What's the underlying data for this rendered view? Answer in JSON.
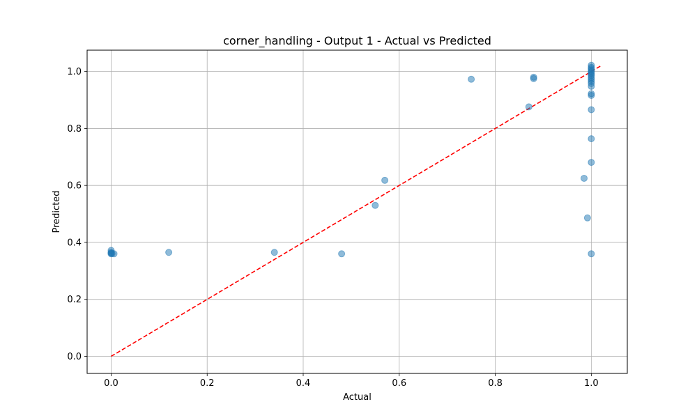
{
  "chart_data": {
    "type": "scatter",
    "title": "corner_handling - Output 1 - Actual vs Predicted",
    "xlabel": "Actual",
    "ylabel": "Predicted",
    "xlim": [
      -0.05,
      1.075
    ],
    "ylim": [
      -0.06,
      1.075
    ],
    "xticks": [
      0.0,
      0.2,
      0.4,
      0.6,
      0.8,
      1.0
    ],
    "yticks": [
      0.0,
      0.2,
      0.4,
      0.6,
      0.8,
      1.0
    ],
    "xtick_labels": [
      "0.0",
      "0.2",
      "0.4",
      "0.6",
      "0.8",
      "1.0"
    ],
    "ytick_labels": [
      "0.0",
      "0.2",
      "0.4",
      "0.6",
      "0.8",
      "1.0"
    ],
    "grid": true,
    "point_color": "#1f77b4",
    "point_alpha": 0.5,
    "reference_line": {
      "style": "dashed",
      "color": "#ff0000",
      "x": [
        0.0,
        1.02
      ],
      "y": [
        0.0,
        1.02
      ]
    },
    "series": [
      {
        "name": "points",
        "points": [
          [
            0.0,
            0.372
          ],
          [
            0.0,
            0.365
          ],
          [
            0.0,
            0.362
          ],
          [
            0.0,
            0.36
          ],
          [
            0.002,
            0.361
          ],
          [
            0.006,
            0.36
          ],
          [
            0.12,
            0.365
          ],
          [
            0.34,
            0.365
          ],
          [
            0.48,
            0.36
          ],
          [
            0.55,
            0.53
          ],
          [
            0.57,
            0.618
          ],
          [
            0.75,
            0.973
          ],
          [
            0.87,
            0.876
          ],
          [
            0.88,
            0.98
          ],
          [
            0.88,
            0.975
          ],
          [
            0.985,
            0.625
          ],
          [
            0.992,
            0.486
          ],
          [
            1.0,
            1.022
          ],
          [
            1.0,
            1.015
          ],
          [
            1.0,
            1.01
          ],
          [
            1.0,
            1.005
          ],
          [
            1.0,
            1.0
          ],
          [
            1.0,
            0.995
          ],
          [
            1.0,
            0.99
          ],
          [
            1.0,
            0.985
          ],
          [
            1.0,
            0.978
          ],
          [
            1.0,
            0.972
          ],
          [
            1.0,
            0.965
          ],
          [
            1.0,
            0.958
          ],
          [
            1.0,
            0.948
          ],
          [
            1.0,
            0.922
          ],
          [
            1.0,
            0.916
          ],
          [
            1.0,
            0.866
          ],
          [
            1.0,
            0.764
          ],
          [
            1.0,
            0.681
          ],
          [
            1.0,
            0.36
          ]
        ]
      }
    ]
  }
}
